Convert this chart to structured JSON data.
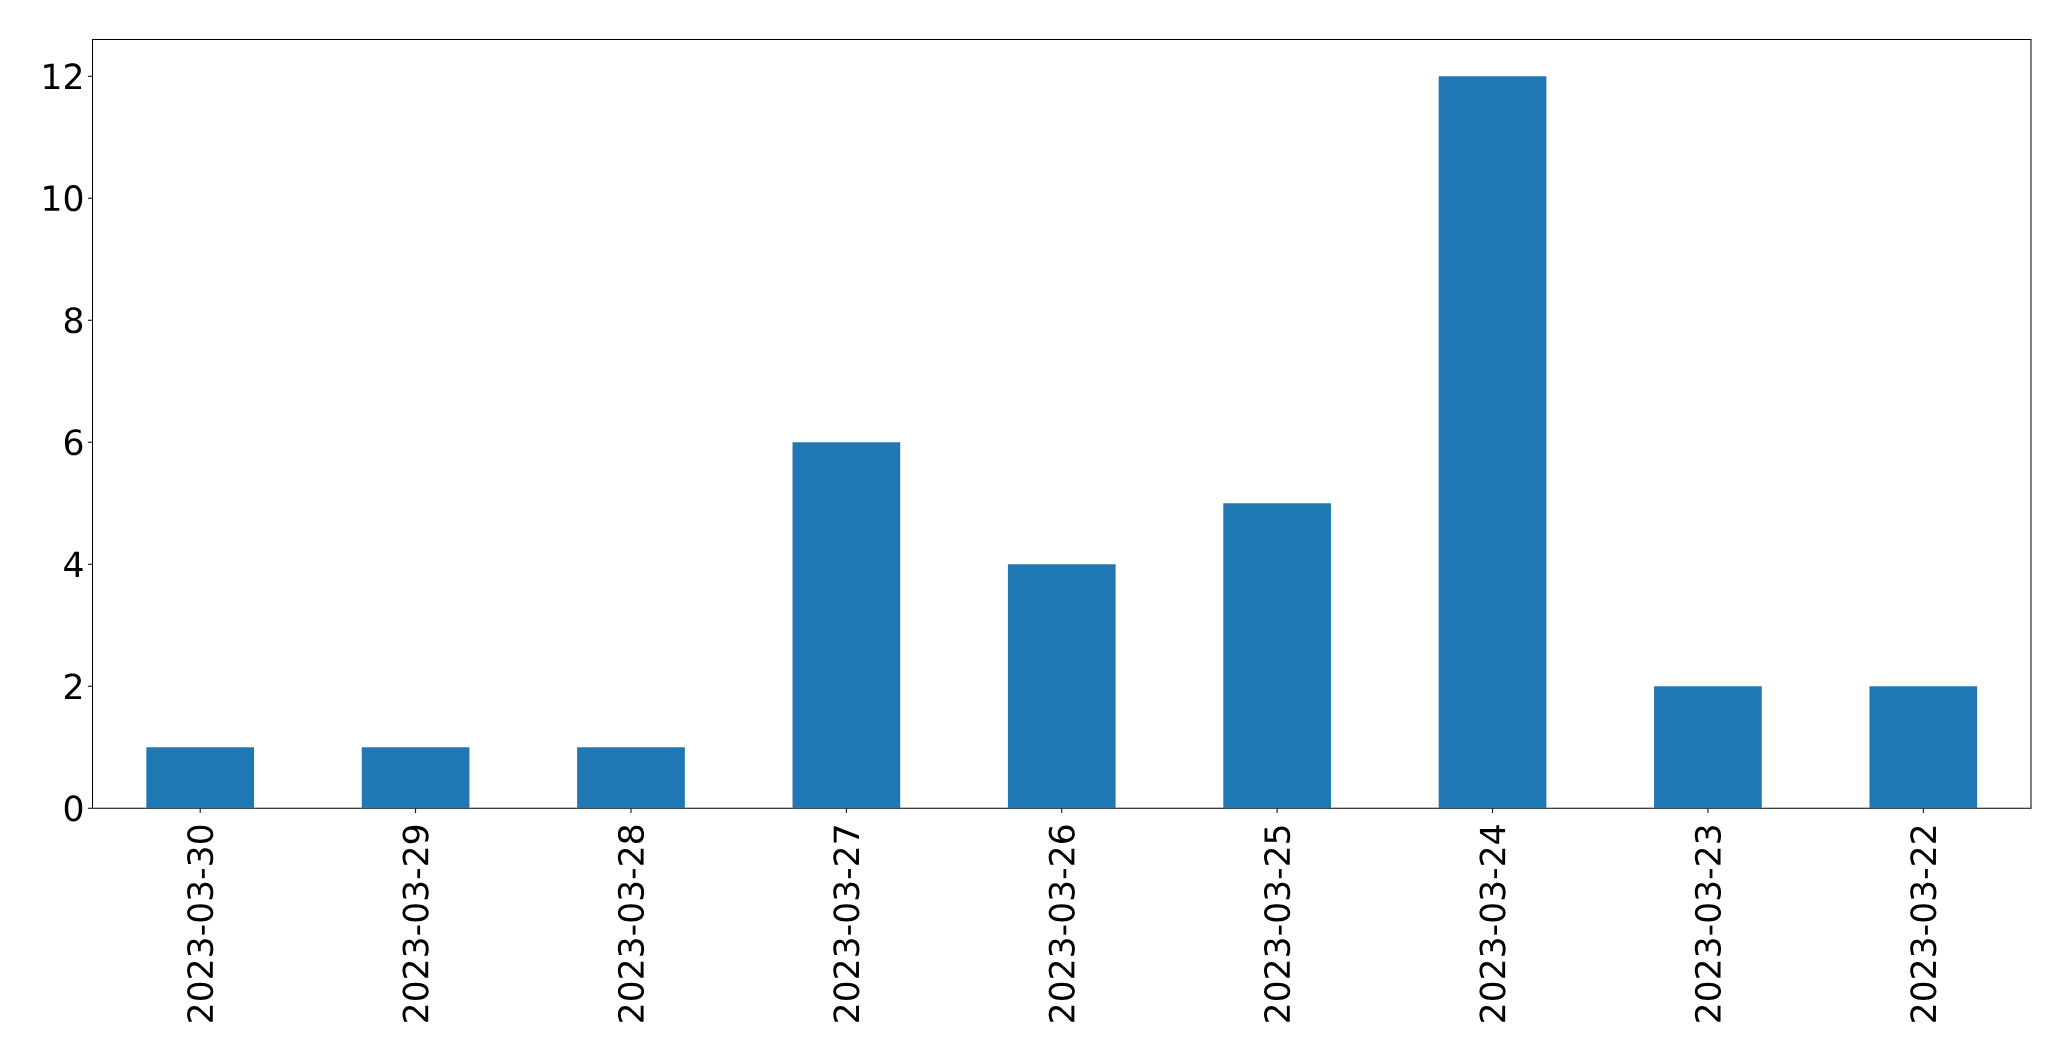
{
  "chart_data": {
    "type": "bar",
    "categories": [
      "2023-03-30",
      "2023-03-29",
      "2023-03-28",
      "2023-03-27",
      "2023-03-26",
      "2023-03-25",
      "2023-03-24",
      "2023-03-23",
      "2023-03-22"
    ],
    "values": [
      1,
      1,
      1,
      6,
      4,
      5,
      12,
      2,
      2
    ],
    "color": "#1f77b4",
    "ylim": [
      0,
      12.6
    ],
    "yticks": [
      0,
      2,
      4,
      6,
      8,
      10,
      12
    ]
  }
}
